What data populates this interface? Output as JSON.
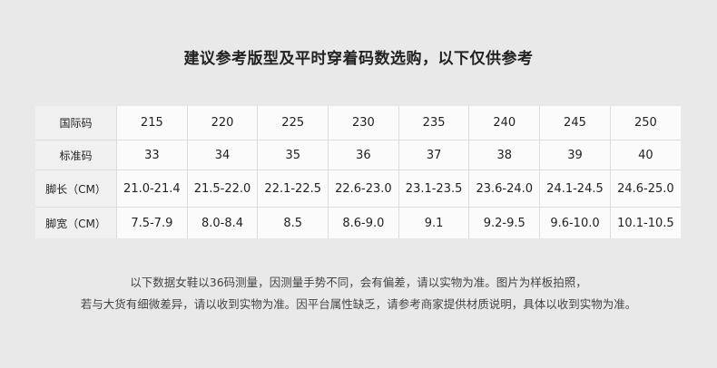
{
  "title": "建议参考版型及平时穿着码数选购，以下仅供参考",
  "table": {
    "rows": [
      {
        "label": "国际码",
        "values": [
          "215",
          "220",
          "225",
          "230",
          "235",
          "240",
          "245",
          "250"
        ]
      },
      {
        "label": "标准码",
        "values": [
          "33",
          "34",
          "35",
          "36",
          "37",
          "38",
          "39",
          "40"
        ]
      },
      {
        "label": "脚长（CM）",
        "values": [
          "21.0-21.4",
          "21.5-22.0",
          "22.1-22.5",
          "22.6-23.0",
          "23.1-23.5",
          "23.6-24.0",
          "24.1-24.5",
          "24.6-25.0"
        ]
      },
      {
        "label": "脚宽（CM）",
        "values": [
          "7.5-7.9",
          "8.0-8.4",
          "8.5",
          "8.6-9.0",
          "9.1",
          "9.2-9.5",
          "9.6-10.0",
          "10.1-10.5"
        ]
      }
    ]
  },
  "notes": [
    "以下数据女鞋以36码测量，因测量手势不同，会有偏差，请以实物为准。图片为样板拍照，",
    "若与大货有细微差异，请以收到实物为准。因平台属性缺乏，请参考商家提供材质说明，具体以收到实物为准。"
  ]
}
